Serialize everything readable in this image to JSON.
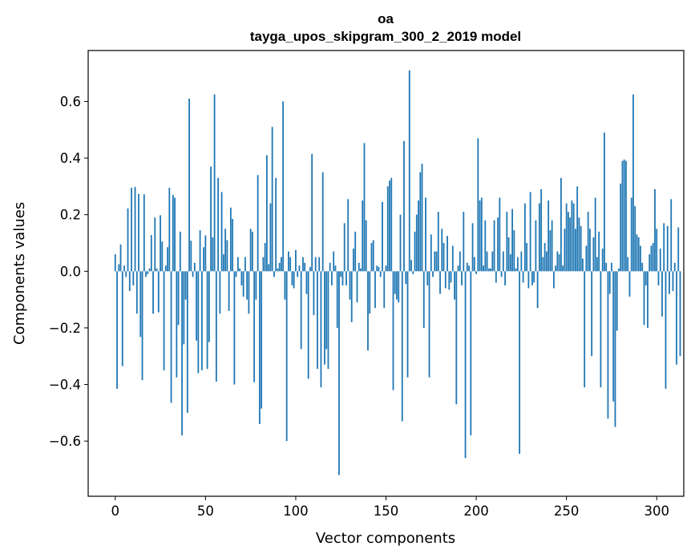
{
  "chart_data": {
    "type": "bar",
    "title": "oa",
    "subtitle": "tayga_upos_skipgram_300_2_2019 model",
    "xlabel": "Vector components",
    "ylabel": "Components values",
    "xlim": [
      -15,
      315
    ],
    "ylim": [
      -0.795,
      0.78
    ],
    "xticks": [
      0,
      50,
      100,
      150,
      200,
      250,
      300
    ],
    "xtick_labels": [
      "0",
      "50",
      "100",
      "150",
      "200",
      "250",
      "300"
    ],
    "yticks": [
      -0.6,
      -0.4,
      -0.2,
      0.0,
      0.2,
      0.4,
      0.6
    ],
    "ytick_labels": [
      "−0.6",
      "−0.4",
      "−0.2",
      "0.0",
      "0.2",
      "0.4",
      "0.6"
    ],
    "color": "#1f77b4",
    "x_start": 0,
    "values": [
      0.06,
      -0.415,
      0.025,
      0.095,
      -0.335,
      0.02,
      -0.02,
      0.222,
      -0.07,
      0.295,
      -0.05,
      0.298,
      -0.15,
      0.273,
      -0.232,
      -0.385,
      0.272,
      -0.02,
      -0.01,
      0.01,
      0.128,
      -0.15,
      0.19,
      0.01,
      -0.145,
      0.198,
      0.105,
      -0.35,
      0.02,
      0.085,
      0.295,
      -0.465,
      0.27,
      0.26,
      -0.375,
      -0.19,
      0.14,
      -0.58,
      -0.258,
      -0.1,
      -0.5,
      0.61,
      0.108,
      -0.02,
      0.03,
      -0.245,
      -0.36,
      0.145,
      -0.35,
      0.085,
      0.127,
      -0.345,
      -0.25,
      0.37,
      0.12,
      0.625,
      -0.39,
      0.33,
      -0.15,
      0.28,
      0.06,
      0.15,
      0.11,
      -0.14,
      0.225,
      0.185,
      -0.4,
      -0.02,
      0.05,
      0.01,
      -0.05,
      -0.09,
      0.05,
      -0.1,
      -0.15,
      0.15,
      0.14,
      -0.392,
      -0.1,
      0.34,
      -0.54,
      -0.485,
      0.05,
      0.1,
      0.41,
      0.025,
      0.24,
      0.51,
      -0.02,
      0.33,
      0.01,
      0.03,
      0.05,
      0.6,
      -0.1,
      -0.6,
      0.07,
      0.05,
      -0.05,
      -0.06,
      0.075,
      -0.02,
      0.02,
      -0.275,
      0.05,
      0.03,
      -0.08,
      -0.38,
      0.015,
      0.415,
      -0.155,
      0.05,
      -0.345,
      0.05,
      -0.41,
      0.35,
      -0.33,
      -0.275,
      -0.345,
      0.03,
      -0.05,
      0.07,
      0.02,
      -0.2,
      -0.72,
      -0.02,
      -0.05,
      0.17,
      -0.05,
      0.255,
      -0.1,
      -0.18,
      0.08,
      0.14,
      -0.11,
      0.03,
      0.01,
      0.25,
      0.453,
      0.18,
      -0.28,
      -0.15,
      0.1,
      0.11,
      -0.13,
      0.02,
      0.015,
      -0.02,
      0.245,
      -0.13,
      0.02,
      0.3,
      0.32,
      0.33,
      -0.42,
      -0.08,
      -0.1,
      -0.11,
      0.2,
      -0.53,
      0.46,
      -0.045,
      -0.375,
      0.71,
      0.04,
      -0.01,
      0.14,
      0.2,
      0.25,
      0.35,
      0.38,
      -0.2,
      0.26,
      -0.05,
      -0.375,
      0.13,
      -0.02,
      0.07,
      0.07,
      0.21,
      -0.08,
      0.15,
      0.1,
      -0.06,
      0.125,
      -0.065,
      -0.04,
      0.09,
      -0.1,
      -0.47,
      0.02,
      0.07,
      -0.05,
      0.21,
      -0.66,
      0.03,
      0.02,
      -0.58,
      0.17,
      0.05,
      -0.01,
      0.47,
      0.25,
      0.26,
      0.02,
      0.18,
      0.07,
      0.01,
      0.01,
      0.07,
      0.18,
      -0.04,
      0.19,
      0.26,
      -0.02,
      0.07,
      -0.05,
      0.21,
      0.12,
      0.06,
      0.22,
      0.145,
      0.01,
      0.05,
      -0.645,
      0.07,
      -0.04,
      0.24,
      0.1,
      -0.06,
      0.28,
      -0.05,
      -0.04,
      0.18,
      -0.13,
      0.24,
      0.29,
      0.05,
      0.1,
      0.07,
      0.25,
      0.145,
      0.18,
      -0.06,
      0.02,
      0.07,
      0.06,
      0.33,
      0.02,
      0.15,
      0.24,
      0.21,
      0.19,
      0.25,
      0.24,
      0.15,
      0.3,
      0.19,
      0.16,
      0.045,
      -0.41,
      0.09,
      0.21,
      0.15,
      -0.3,
      0.12,
      0.26,
      0.05,
      0.14,
      -0.41,
      0.08,
      0.49,
      0.03,
      -0.52,
      -0.08,
      0.03,
      -0.46,
      -0.55,
      -0.21,
      0.01,
      0.31,
      0.39,
      0.395,
      0.39,
      0.05,
      -0.09,
      0.26,
      0.625,
      0.23,
      0.13,
      0.12,
      0.09,
      0.03,
      -0.19,
      -0.05,
      -0.2,
      0.06,
      0.09,
      0.1,
      0.29,
      0.15,
      -0.05,
      0.08,
      -0.16,
      0.17,
      -0.415,
      0.16,
      -0.08,
      0.255,
      -0.07,
      0.03,
      -0.33,
      0.155,
      -0.3
    ]
  }
}
